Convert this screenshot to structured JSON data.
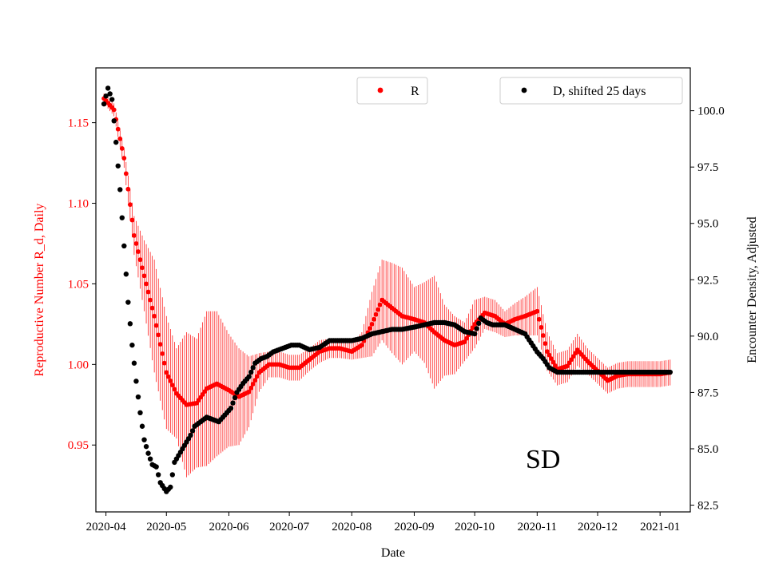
{
  "chart_data": {
    "type": "scatter",
    "title": "",
    "xlabel": "Date",
    "ylabel_left": "Reproductive Number R_d, Daily",
    "ylabel_right": "Encounter Density, Adjusted",
    "annotation": "SD",
    "grid": false,
    "colors": {
      "R": "#ff0000",
      "D": "#000000",
      "left_axis": "#ff0000",
      "right_axis": "#000000"
    },
    "x_range": [
      "2020-03-27",
      "2021-01-16"
    ],
    "ylim_left": [
      0.9085,
      1.184
    ],
    "ylim_right": [
      82.2,
      101.9
    ],
    "x_ticks": [
      "2020-04",
      "2020-05",
      "2020-06",
      "2020-07",
      "2020-08",
      "2020-09",
      "2020-10",
      "2020-11",
      "2020-12",
      "2021-01"
    ],
    "x_tick_dates": [
      "2020-04-01",
      "2020-05-01",
      "2020-06-01",
      "2020-07-01",
      "2020-08-01",
      "2020-09-01",
      "2020-10-01",
      "2020-11-01",
      "2020-12-01",
      "2021-01-01"
    ],
    "y_ticks_left": [
      "0.95",
      "1.00",
      "1.05",
      "1.10",
      "1.15"
    ],
    "y_ticks_right": [
      "82.5",
      "85.0",
      "87.5",
      "90.0",
      "92.5",
      "95.0",
      "97.5",
      "100.0"
    ],
    "legend": {
      "R": {
        "label": "R",
        "placement": "upper-center"
      },
      "D": {
        "label": "D, shifted 25 days",
        "placement": "upper-right"
      }
    },
    "series": [
      {
        "name": "R",
        "axis": "left",
        "marker": "point",
        "error_bars": true,
        "x": [
          "2020-03-31",
          "2020-04-05",
          "2020-04-10",
          "2020-04-15",
          "2020-04-20",
          "2020-04-25",
          "2020-05-01",
          "2020-05-06",
          "2020-05-11",
          "2020-05-16",
          "2020-05-21",
          "2020-05-26",
          "2020-06-01",
          "2020-06-06",
          "2020-06-11",
          "2020-06-16",
          "2020-06-21",
          "2020-06-26",
          "2020-07-01",
          "2020-07-06",
          "2020-07-11",
          "2020-07-16",
          "2020-07-21",
          "2020-07-26",
          "2020-08-01",
          "2020-08-06",
          "2020-08-11",
          "2020-08-16",
          "2020-08-21",
          "2020-08-26",
          "2020-09-01",
          "2020-09-06",
          "2020-09-11",
          "2020-09-16",
          "2020-09-21",
          "2020-09-26",
          "2020-10-01",
          "2020-10-06",
          "2020-10-11",
          "2020-10-16",
          "2020-10-21",
          "2020-10-26",
          "2020-11-01",
          "2020-11-06",
          "2020-11-11",
          "2020-11-16",
          "2020-11-21",
          "2020-11-26",
          "2020-12-01",
          "2020-12-06",
          "2020-12-11",
          "2020-12-16",
          "2020-12-21",
          "2020-12-26",
          "2021-01-01",
          "2021-01-06"
        ],
        "y": [
          1.165,
          1.158,
          1.128,
          1.08,
          1.055,
          1.03,
          0.995,
          0.982,
          0.975,
          0.976,
          0.985,
          0.988,
          0.984,
          0.98,
          0.983,
          0.995,
          1.0,
          1.0,
          0.998,
          0.998,
          1.003,
          1.008,
          1.01,
          1.01,
          1.008,
          1.012,
          1.025,
          1.04,
          1.035,
          1.03,
          1.028,
          1.026,
          1.02,
          1.015,
          1.012,
          1.014,
          1.025,
          1.032,
          1.03,
          1.025,
          1.028,
          1.03,
          1.033,
          1.008,
          0.997,
          0.999,
          1.009,
          1.002,
          0.996,
          0.99,
          0.993,
          0.994,
          0.994,
          0.994,
          0.994,
          0.995
        ],
        "error": [
          0.003,
          0.004,
          0.006,
          0.012,
          0.022,
          0.035,
          0.035,
          0.028,
          0.045,
          0.04,
          0.048,
          0.045,
          0.035,
          0.03,
          0.022,
          0.012,
          0.008,
          0.008,
          0.008,
          0.008,
          0.007,
          0.007,
          0.006,
          0.006,
          0.005,
          0.008,
          0.02,
          0.025,
          0.028,
          0.03,
          0.02,
          0.025,
          0.035,
          0.022,
          0.018,
          0.012,
          0.015,
          0.01,
          0.01,
          0.008,
          0.01,
          0.012,
          0.015,
          0.012,
          0.01,
          0.01,
          0.01,
          0.008,
          0.008,
          0.008,
          0.008,
          0.008,
          0.008,
          0.008,
          0.008,
          0.008
        ]
      },
      {
        "name": "D, shifted 25 days",
        "axis": "right",
        "marker": "point",
        "error_bars": false,
        "x": [
          "2020-03-31",
          "2020-04-02",
          "2020-04-04",
          "2020-04-06",
          "2020-04-08",
          "2020-04-10",
          "2020-04-12",
          "2020-04-14",
          "2020-04-16",
          "2020-04-18",
          "2020-04-20",
          "2020-04-22",
          "2020-04-24",
          "2020-04-26",
          "2020-04-28",
          "2020-05-01",
          "2020-05-03",
          "2020-05-05",
          "2020-05-07",
          "2020-05-09",
          "2020-05-11",
          "2020-05-13",
          "2020-05-15",
          "2020-05-18",
          "2020-05-21",
          "2020-05-24",
          "2020-05-27",
          "2020-05-30",
          "2020-06-02",
          "2020-06-05",
          "2020-06-08",
          "2020-06-11",
          "2020-06-14",
          "2020-06-17",
          "2020-06-20",
          "2020-06-23",
          "2020-06-26",
          "2020-06-29",
          "2020-07-02",
          "2020-07-06",
          "2020-07-11",
          "2020-07-16",
          "2020-07-21",
          "2020-07-26",
          "2020-08-01",
          "2020-08-06",
          "2020-08-11",
          "2020-08-16",
          "2020-08-21",
          "2020-08-26",
          "2020-09-01",
          "2020-09-06",
          "2020-09-11",
          "2020-09-16",
          "2020-09-21",
          "2020-09-26",
          "2020-10-01",
          "2020-10-04",
          "2020-10-07",
          "2020-10-10",
          "2020-10-16",
          "2020-10-21",
          "2020-10-26",
          "2020-11-01",
          "2020-11-04",
          "2020-11-07",
          "2020-11-11",
          "2020-11-14",
          "2020-11-17",
          "2020-11-22",
          "2020-11-27",
          "2020-12-01",
          "2020-12-06",
          "2020-12-11",
          "2020-12-16",
          "2020-12-21",
          "2020-12-26",
          "2021-01-01",
          "2021-01-06"
        ],
        "y": [
          100.3,
          101.0,
          100.5,
          98.6,
          96.5,
          94.0,
          91.5,
          89.6,
          88.0,
          86.6,
          85.4,
          84.8,
          84.3,
          84.2,
          83.5,
          83.1,
          83.3,
          84.4,
          84.7,
          85.0,
          85.3,
          85.6,
          86.0,
          86.2,
          86.4,
          86.3,
          86.2,
          86.5,
          86.8,
          87.5,
          87.9,
          88.2,
          88.8,
          89.0,
          89.1,
          89.3,
          89.4,
          89.5,
          89.6,
          89.6,
          89.4,
          89.5,
          89.8,
          89.8,
          89.8,
          89.9,
          90.1,
          90.2,
          90.3,
          90.3,
          90.4,
          90.5,
          90.6,
          90.6,
          90.5,
          90.2,
          90.1,
          90.8,
          90.6,
          90.5,
          90.5,
          90.3,
          90.1,
          89.3,
          89.0,
          88.6,
          88.4,
          88.4,
          88.4,
          88.4,
          88.4,
          88.4,
          88.4,
          88.4,
          88.4,
          88.4,
          88.4,
          88.4,
          88.4
        ]
      }
    ]
  }
}
